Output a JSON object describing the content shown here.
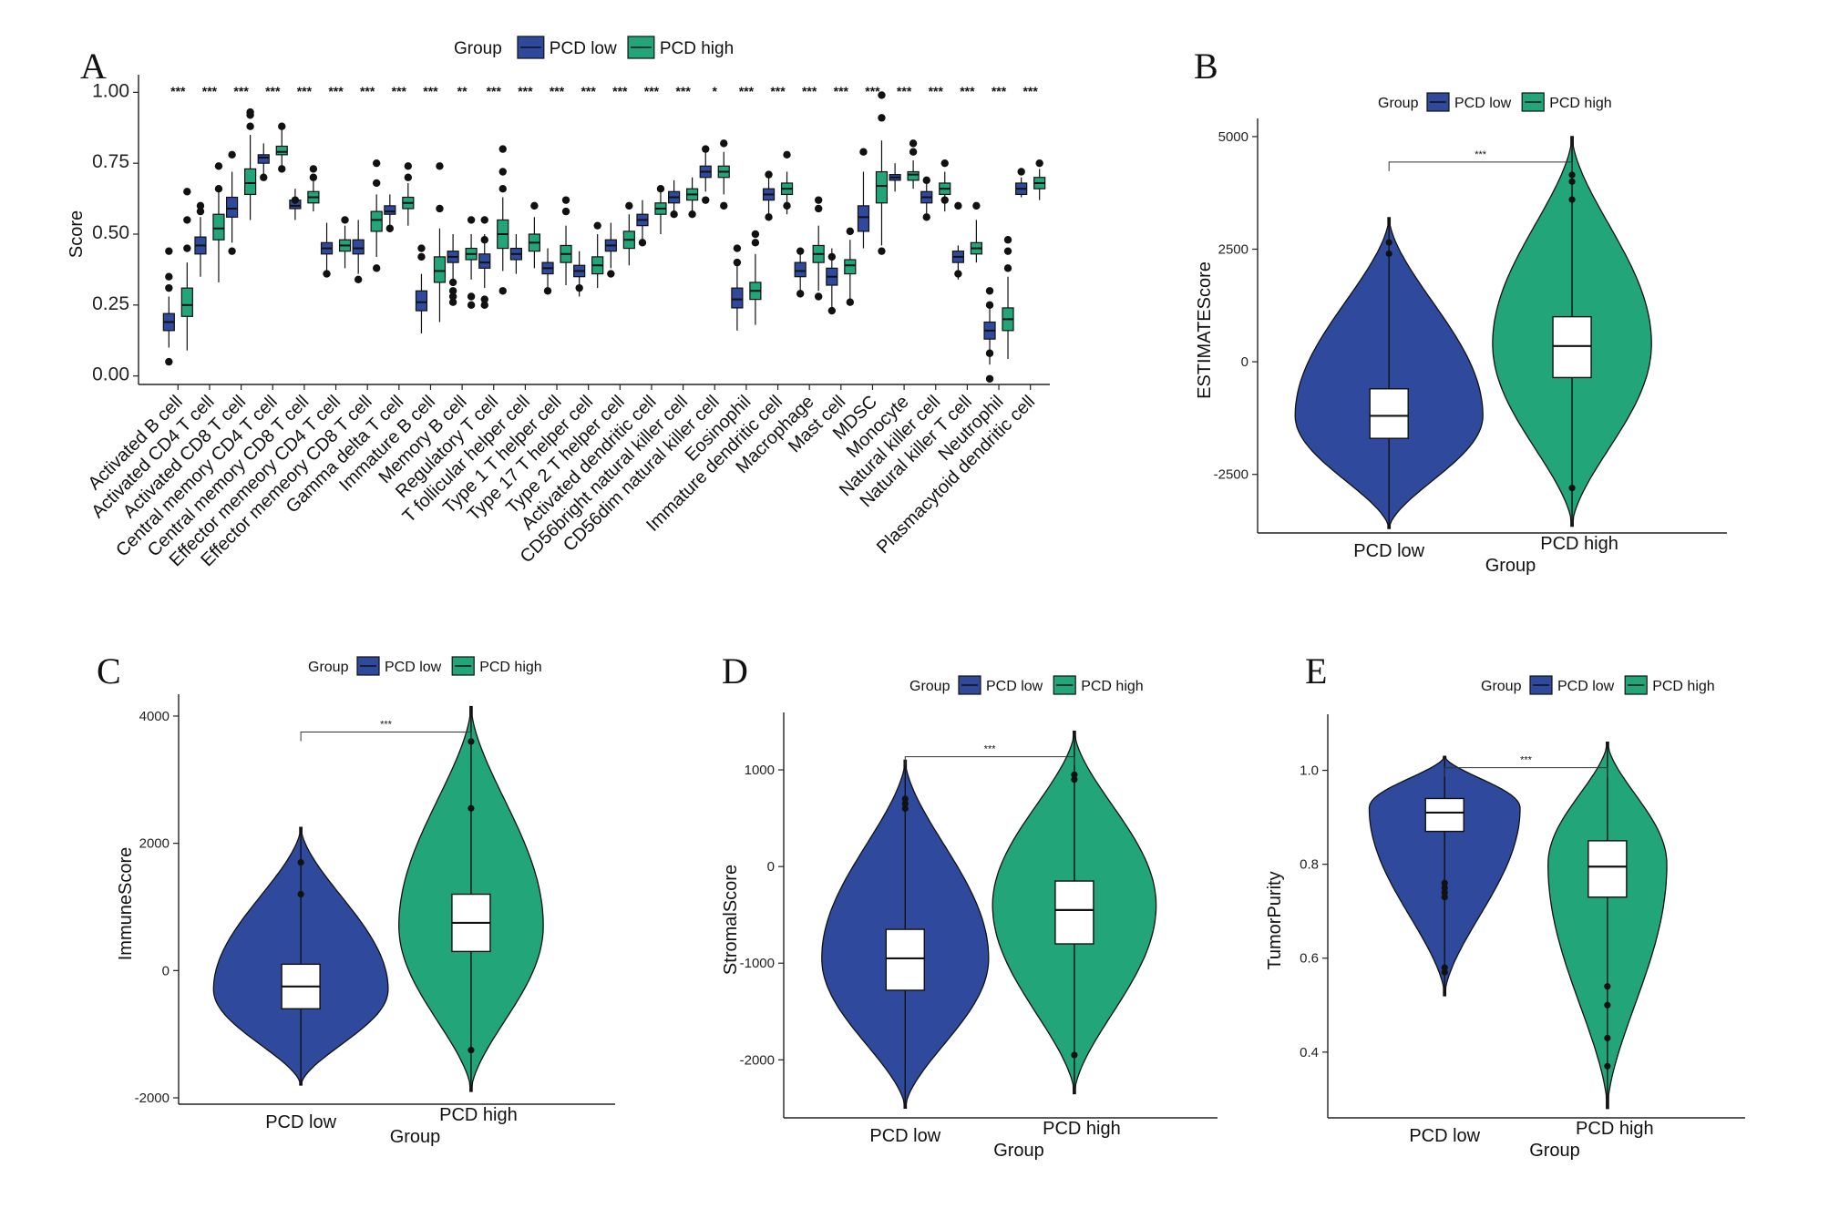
{
  "colors": {
    "low": "#2f4a9c",
    "high": "#23a57a",
    "axis": "#222222",
    "box": "#ffffff"
  },
  "chart_data": [
    {
      "id": "A",
      "panel_label": "A",
      "type": "box",
      "title": "",
      "legend": {
        "title": "Group",
        "entries": [
          "PCD low",
          "PCD high"
        ],
        "position": "top"
      },
      "xlabel": "",
      "ylabel": "Score",
      "ylim": [
        0,
        1.0
      ],
      "yticks": [
        "0.00",
        "0.25",
        "0.50",
        "0.75",
        "1.00"
      ],
      "categories": [
        "Activated B cell",
        "Activated CD4 T cell",
        "Activated CD8 T cell",
        "Central memory CD4 T cell",
        "Central memory CD8 T cell",
        "Effector memeory CD4 T cell",
        "Effector memeory CD8 T cell",
        "Gamma delta T cell",
        "Immature  B cell",
        "Memory B cell",
        "Regulatory T cell",
        "T follicular helper cell",
        "Type 1 T helper cell",
        "Type 17 T helper cell",
        "Type 2 T helper cell",
        "Activated dendritic cell",
        "CD56bright natural killer cell",
        "CD56dim natural killer cell",
        "Eosinophil",
        "Immature dendritic cell",
        "Macrophage",
        "Mast cell",
        "MDSC",
        "Monocyte",
        "Natural killer cell",
        "Natural killer T cell",
        "Neutrophil",
        "Plasmacytoid dendritic cell"
      ],
      "significance": [
        "***",
        "***",
        "***",
        "***",
        "***",
        "***",
        "***",
        "***",
        "***",
        "**",
        "***",
        "***",
        "***",
        "***",
        "***",
        "***",
        "***",
        "*",
        "***",
        "***",
        "***",
        "***",
        "***",
        "***",
        "***",
        "***",
        "***",
        "***"
      ],
      "series": [
        {
          "name": "PCD low",
          "median": [
            0.19,
            0.46,
            0.59,
            0.77,
            0.6,
            0.45,
            0.45,
            0.58,
            0.26,
            0.42,
            0.4,
            0.43,
            0.38,
            0.37,
            0.46,
            0.55,
            0.63,
            0.72,
            0.27,
            0.64,
            0.37,
            0.35,
            0.56,
            0.7,
            0.63,
            0.42,
            0.16,
            0.66
          ],
          "q1": [
            0.16,
            0.43,
            0.56,
            0.75,
            0.59,
            0.43,
            0.43,
            0.57,
            0.23,
            0.4,
            0.38,
            0.41,
            0.36,
            0.35,
            0.44,
            0.53,
            0.61,
            0.7,
            0.24,
            0.62,
            0.35,
            0.32,
            0.51,
            0.69,
            0.61,
            0.4,
            0.13,
            0.64
          ],
          "q3": [
            0.22,
            0.49,
            0.63,
            0.78,
            0.62,
            0.47,
            0.48,
            0.6,
            0.3,
            0.44,
            0.43,
            0.45,
            0.4,
            0.39,
            0.48,
            0.57,
            0.65,
            0.74,
            0.31,
            0.66,
            0.4,
            0.38,
            0.6,
            0.71,
            0.65,
            0.44,
            0.19,
            0.68
          ],
          "whisker_low": [
            0.1,
            0.35,
            0.47,
            0.71,
            0.55,
            0.37,
            0.36,
            0.52,
            0.15,
            0.34,
            0.31,
            0.36,
            0.31,
            0.28,
            0.38,
            0.47,
            0.57,
            0.65,
            0.16,
            0.56,
            0.28,
            0.24,
            0.45,
            0.65,
            0.56,
            0.34,
            0.04,
            0.63
          ],
          "whisker_high": [
            0.28,
            0.56,
            0.72,
            0.82,
            0.66,
            0.54,
            0.55,
            0.64,
            0.36,
            0.5,
            0.5,
            0.5,
            0.45,
            0.44,
            0.54,
            0.62,
            0.69,
            0.8,
            0.4,
            0.7,
            0.45,
            0.45,
            0.72,
            0.75,
            0.69,
            0.46,
            0.24,
            0.7
          ],
          "outliers": [
            [
              0.05,
              0.31,
              0.35,
              0.44
            ],
            [
              0.58,
              0.6
            ],
            [
              0.44,
              0.78
            ],
            [
              0.7
            ],
            [
              0.62
            ],
            [
              0.36
            ],
            [
              0.34
            ],
            [
              0.52
            ],
            [
              0.42,
              0.45
            ],
            [
              0.26,
              0.28,
              0.3,
              0.33
            ],
            [
              0.25,
              0.27,
              0.48,
              0.55
            ],
            [],
            [
              0.3
            ],
            [
              0.31
            ],
            [
              0.36
            ],
            [
              0.47
            ],
            [
              0.57
            ],
            [
              0.62,
              0.8
            ],
            [
              0.4,
              0.45
            ],
            [
              0.56,
              0.71
            ],
            [
              0.29,
              0.44
            ],
            [
              0.23,
              0.42
            ],
            [
              0.79
            ],
            [],
            [
              0.56,
              0.69
            ],
            [
              0.36,
              0.6
            ],
            [
              -0.01,
              0.08,
              0.25,
              0.3
            ],
            [
              0.72
            ]
          ]
        },
        {
          "name": "PCD high",
          "median": [
            0.25,
            0.52,
            0.68,
            0.79,
            0.63,
            0.46,
            0.55,
            0.61,
            0.37,
            0.43,
            0.5,
            0.47,
            0.43,
            0.39,
            0.48,
            0.59,
            0.64,
            0.72,
            0.3,
            0.66,
            0.43,
            0.39,
            0.67,
            0.71,
            0.66,
            0.45,
            0.2,
            0.68
          ],
          "q1": [
            0.21,
            0.48,
            0.64,
            0.78,
            0.61,
            0.44,
            0.51,
            0.59,
            0.33,
            0.41,
            0.45,
            0.44,
            0.4,
            0.36,
            0.45,
            0.57,
            0.62,
            0.7,
            0.27,
            0.64,
            0.4,
            0.36,
            0.61,
            0.69,
            0.64,
            0.43,
            0.16,
            0.66
          ],
          "q3": [
            0.31,
            0.57,
            0.73,
            0.81,
            0.65,
            0.48,
            0.58,
            0.63,
            0.42,
            0.45,
            0.55,
            0.5,
            0.46,
            0.42,
            0.51,
            0.61,
            0.66,
            0.74,
            0.33,
            0.68,
            0.46,
            0.41,
            0.72,
            0.72,
            0.68,
            0.47,
            0.24,
            0.7
          ],
          "whisker_low": [
            0.09,
            0.33,
            0.55,
            0.73,
            0.58,
            0.38,
            0.42,
            0.53,
            0.19,
            0.34,
            0.37,
            0.38,
            0.32,
            0.31,
            0.39,
            0.5,
            0.56,
            0.64,
            0.18,
            0.57,
            0.3,
            0.27,
            0.46,
            0.66,
            0.58,
            0.4,
            0.06,
            0.62
          ],
          "whisker_high": [
            0.4,
            0.65,
            0.85,
            0.87,
            0.69,
            0.53,
            0.64,
            0.68,
            0.52,
            0.5,
            0.63,
            0.56,
            0.53,
            0.5,
            0.57,
            0.66,
            0.7,
            0.79,
            0.43,
            0.72,
            0.53,
            0.48,
            0.83,
            0.76,
            0.72,
            0.55,
            0.35,
            0.73
          ],
          "outliers": [
            [
              0.45,
              0.55,
              0.65
            ],
            [
              0.66,
              0.74
            ],
            [
              0.88,
              0.92,
              0.93
            ],
            [
              0.73,
              0.88
            ],
            [
              0.7,
              0.73
            ],
            [
              0.55
            ],
            [
              0.38,
              0.68,
              0.75
            ],
            [
              0.7,
              0.74
            ],
            [
              0.59,
              0.74
            ],
            [
              0.25,
              0.28,
              0.55
            ],
            [
              0.3,
              0.66,
              0.72,
              0.8
            ],
            [
              0.6
            ],
            [
              0.58,
              0.62
            ],
            [
              0.53
            ],
            [
              0.6
            ],
            [
              0.66
            ],
            [
              0.57
            ],
            [
              0.6,
              0.82
            ],
            [
              0.47,
              0.5
            ],
            [
              0.6,
              0.78
            ],
            [
              0.28,
              0.59,
              0.62
            ],
            [
              0.26,
              0.51
            ],
            [
              0.44,
              0.91,
              0.99
            ],
            [
              0.79,
              0.82
            ],
            [
              0.62,
              0.75
            ],
            [
              0.6
            ],
            [
              0.38,
              0.44,
              0.48
            ],
            [
              0.75
            ]
          ]
        }
      ]
    },
    {
      "id": "B",
      "panel_label": "B",
      "type": "violin",
      "legend": {
        "title": "Group",
        "entries": [
          "PCD low",
          "PCD high"
        ],
        "position": "top"
      },
      "xlabel": "Group",
      "ylabel": "ESTIMATEScore",
      "categories": [
        "PCD low",
        "PCD high"
      ],
      "ylim": [
        -3800,
        5200
      ],
      "yticks": [
        -2500,
        0,
        2500,
        5000
      ],
      "significance": "***",
      "groups": [
        {
          "name": "PCD low",
          "median": -1200,
          "q1": -1700,
          "q3": -600,
          "whisker_low": -2950,
          "whisker_high": 350,
          "min": -3700,
          "max": 3200,
          "mode": -1200,
          "mode_half_width": 0.52,
          "outliers": [
            2400,
            2650
          ]
        },
        {
          "name": "PCD high",
          "median": 350,
          "q1": -350,
          "q3": 1000,
          "whisker_low": -2700,
          "whisker_high": 3150,
          "min": -3650,
          "max": 5000,
          "mode": 400,
          "mode_half_width": 0.44,
          "outliers": [
            -2800,
            3600,
            4000,
            4150
          ]
        }
      ]
    },
    {
      "id": "C",
      "panel_label": "C",
      "type": "violin",
      "legend": {
        "title": "Group",
        "entries": [
          "PCD low",
          "PCD high"
        ],
        "position": "top"
      },
      "xlabel": "Group",
      "ylabel": "ImmuneScore",
      "categories": [
        "PCD low",
        "PCD high"
      ],
      "ylim": [
        -2100,
        4200
      ],
      "yticks": [
        -2000,
        0,
        2000,
        4000
      ],
      "significance": "***",
      "groups": [
        {
          "name": "PCD low",
          "median": -250,
          "q1": -600,
          "q3": 100,
          "whisker_low": -1300,
          "whisker_high": 1200,
          "min": -1800,
          "max": 2250,
          "mode": -300,
          "mode_half_width": 0.52,
          "outliers": [
            1200,
            1700
          ]
        },
        {
          "name": "PCD high",
          "median": 750,
          "q1": 300,
          "q3": 1200,
          "whisker_low": -1200,
          "whisker_high": 2500,
          "min": -1900,
          "max": 4150,
          "mode": 700,
          "mode_half_width": 0.43,
          "outliers": [
            -1250,
            2550,
            3600
          ]
        }
      ]
    },
    {
      "id": "D",
      "panel_label": "D",
      "type": "violin",
      "legend": {
        "title": "Group",
        "entries": [
          "PCD low",
          "PCD high"
        ],
        "position": "top"
      },
      "xlabel": "Group",
      "ylabel": "StromalScore",
      "categories": [
        "PCD low",
        "PCD high"
      ],
      "ylim": [
        -2600,
        1500
      ],
      "yticks": [
        -2000,
        -1000,
        0,
        1000
      ],
      "significance": "***",
      "groups": [
        {
          "name": "PCD low",
          "median": -950,
          "q1": -1280,
          "q3": -650,
          "whisker_low": -2100,
          "whisker_high": 550,
          "min": -2500,
          "max": 1100,
          "mode": -950,
          "mode_half_width": 0.5,
          "outliers": [
            600,
            650,
            700
          ]
        },
        {
          "name": "PCD high",
          "median": -450,
          "q1": -800,
          "q3": -150,
          "whisker_low": -1450,
          "whisker_high": 850,
          "min": -2350,
          "max": 1400,
          "mode": -400,
          "mode_half_width": 0.49,
          "outliers": [
            -1950,
            900,
            950
          ]
        }
      ]
    },
    {
      "id": "E",
      "panel_label": "E",
      "type": "violin",
      "legend": {
        "title": "Group",
        "entries": [
          "PCD low",
          "PCD high"
        ],
        "position": "top"
      },
      "xlabel": "Group",
      "ylabel": "TumorPurity",
      "categories": [
        "PCD low",
        "PCD high"
      ],
      "ylim": [
        0.26,
        1.1
      ],
      "yticks": [
        "0.4",
        "0.6",
        "0.8",
        "1.0"
      ],
      "significance": "***",
      "groups": [
        {
          "name": "PCD low",
          "median": 0.91,
          "q1": 0.87,
          "q3": 0.94,
          "whisker_low": 0.78,
          "whisker_high": 0.99,
          "min": 0.52,
          "max": 1.03,
          "mode": 0.92,
          "mode_half_width": 0.47,
          "outliers": [
            0.57,
            0.58,
            0.73,
            0.74,
            0.75,
            0.76
          ]
        },
        {
          "name": "PCD high",
          "median": 0.795,
          "q1": 0.73,
          "q3": 0.85,
          "whisker_low": 0.55,
          "whisker_high": 0.99,
          "min": 0.28,
          "max": 1.06,
          "mode": 0.8,
          "mode_half_width": 0.37,
          "outliers": [
            0.37,
            0.43,
            0.5,
            0.54
          ]
        }
      ]
    }
  ]
}
